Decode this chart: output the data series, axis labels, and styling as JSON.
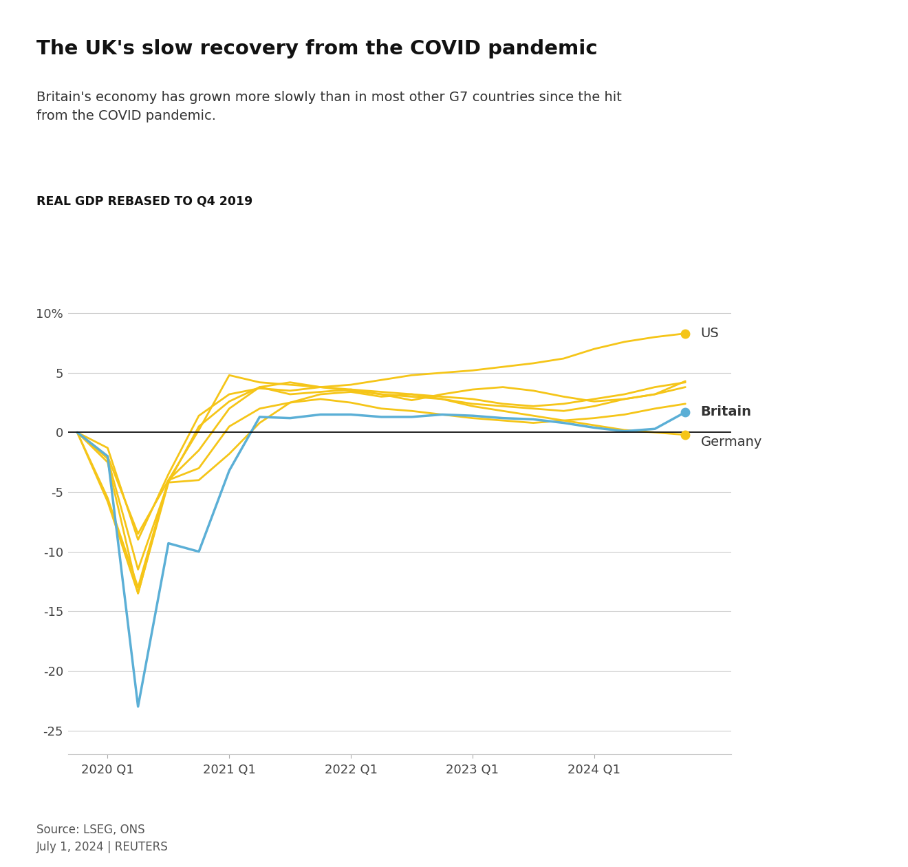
{
  "title": "The UK's slow recovery from the COVID pandemic",
  "subtitle": "Britain's economy has grown more slowly than in most other G7 countries since the hit\nfrom the COVID pandemic.",
  "axis_label": "REAL GDP REBASED TO Q4 2019",
  "source": "Source: LSEG, ONS\nJuly 1, 2024 | REUTERS",
  "ytick_values": [
    10,
    5,
    0,
    -5,
    -10,
    -15,
    -20,
    -25
  ],
  "ylim": [
    -27,
    13
  ],
  "xtick_positions": [
    1,
    5,
    9,
    13,
    17
  ],
  "xtick_labels": [
    "2020 Q1",
    "2021 Q1",
    "2022 Q1",
    "2023 Q1",
    "2024 Q1"
  ],
  "britain_color": "#5bafd6",
  "other_color": "#f5c518",
  "britain_label": "Britain",
  "us_label": "US",
  "germany_label": "Germany",
  "quarters": [
    0,
    1,
    2,
    3,
    4,
    5,
    6,
    7,
    8,
    9,
    10,
    11,
    12,
    13,
    14,
    15,
    16,
    17,
    18,
    19,
    20
  ],
  "britain": [
    0,
    -2.0,
    -23.0,
    -9.3,
    -10.0,
    -3.2,
    1.3,
    1.2,
    1.5,
    1.5,
    1.3,
    1.3,
    1.5,
    1.4,
    1.2,
    1.1,
    0.8,
    0.4,
    0.1,
    0.3,
    1.7
  ],
  "us": [
    0,
    -1.3,
    -9.0,
    -3.5,
    1.4,
    3.2,
    3.7,
    3.5,
    3.8,
    4.0,
    4.4,
    4.8,
    5.0,
    5.2,
    5.5,
    5.8,
    6.2,
    7.0,
    7.6,
    8.0,
    8.3
  ],
  "canada": [
    0,
    -2.5,
    -13.5,
    -4.2,
    0.5,
    2.6,
    3.8,
    3.2,
    3.4,
    3.6,
    3.2,
    2.7,
    3.2,
    3.6,
    3.8,
    3.5,
    3.0,
    2.6,
    2.8,
    3.2,
    4.3
  ],
  "france": [
    0,
    -5.8,
    -13.5,
    -4.0,
    -1.5,
    2.0,
    3.8,
    4.2,
    3.8,
    3.5,
    3.2,
    3.0,
    2.8,
    2.4,
    2.2,
    2.0,
    1.8,
    2.2,
    2.8,
    3.2,
    3.8
  ],
  "italy": [
    0,
    -5.5,
    -13.0,
    -4.0,
    0.2,
    4.8,
    4.2,
    4.0,
    3.8,
    3.6,
    3.4,
    3.2,
    3.0,
    2.8,
    2.4,
    2.2,
    2.4,
    2.8,
    3.2,
    3.8,
    4.2
  ],
  "japan": [
    0,
    -2.0,
    -8.5,
    -4.0,
    -3.0,
    0.5,
    2.0,
    2.5,
    2.8,
    2.5,
    2.0,
    1.8,
    1.5,
    1.2,
    1.0,
    0.8,
    1.0,
    1.2,
    1.5,
    2.0,
    2.4
  ],
  "germany": [
    0,
    -2.2,
    -11.5,
    -4.2,
    -4.0,
    -1.8,
    0.8,
    2.5,
    3.2,
    3.4,
    3.0,
    3.2,
    2.8,
    2.2,
    1.8,
    1.4,
    1.0,
    0.6,
    0.2,
    0.0,
    -0.2
  ]
}
